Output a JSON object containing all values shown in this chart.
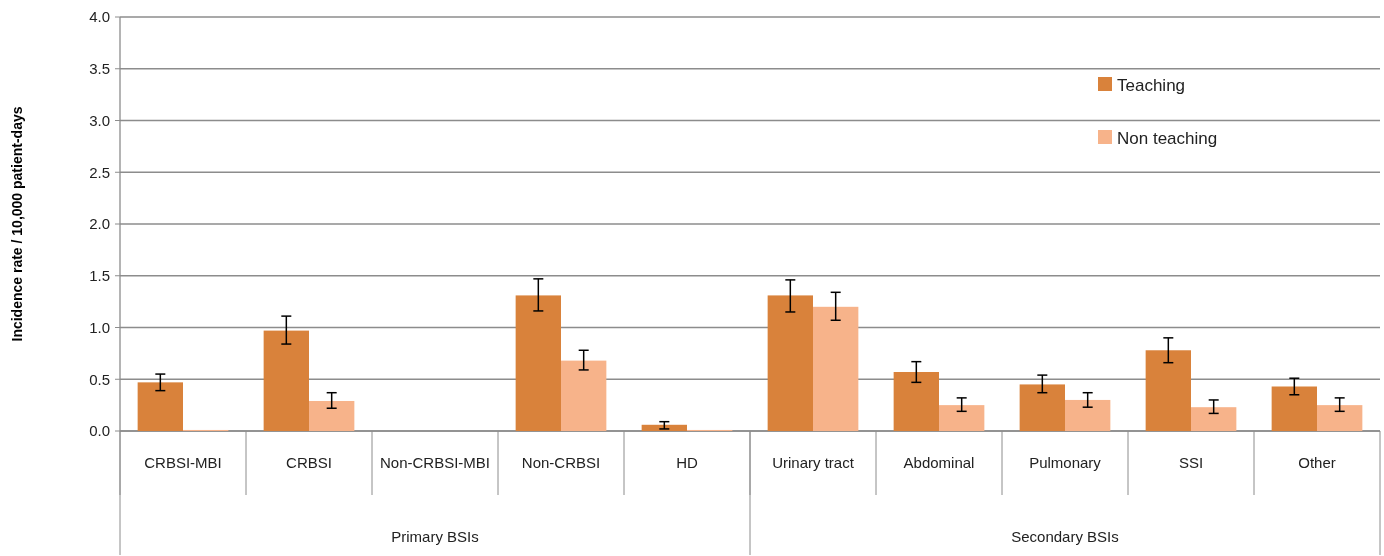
{
  "chart_data": {
    "type": "bar",
    "ylabel": "Incidence rate / 10,000 patient-days",
    "categories": [
      "CRBSI-MBI",
      "CRBSI",
      "Non-CRBSI-MBI",
      "Non-CRBSI",
      "HD",
      "Urinary tract",
      "Abdominal",
      "Pulmonary",
      "SSI",
      "Other"
    ],
    "series": [
      {
        "name": "Teaching",
        "color": "#d9823b",
        "values": [
          0.47,
          0.97,
          null,
          1.31,
          0.06,
          1.31,
          0.57,
          0.45,
          0.78,
          0.43
        ],
        "errors": [
          [
            0.39,
            0.55
          ],
          [
            0.84,
            1.11
          ],
          null,
          [
            1.16,
            1.47
          ],
          [
            0.02,
            0.09
          ],
          [
            1.15,
            1.46
          ],
          [
            0.47,
            0.67
          ],
          [
            0.37,
            0.54
          ],
          [
            0.66,
            0.9
          ],
          [
            0.35,
            0.51
          ]
        ]
      },
      {
        "name": "Non teaching",
        "color": "#f7b38a",
        "values": [
          0.01,
          0.29,
          null,
          0.68,
          0.01,
          1.2,
          0.25,
          0.3,
          0.23,
          0.25
        ],
        "errors": [
          null,
          [
            0.22,
            0.37
          ],
          null,
          [
            0.59,
            0.78
          ],
          null,
          [
            1.07,
            1.34
          ],
          [
            0.19,
            0.32
          ],
          [
            0.23,
            0.37
          ],
          [
            0.17,
            0.3
          ],
          [
            0.19,
            0.32
          ]
        ]
      }
    ],
    "ylim": [
      0,
      4
    ],
    "yticks": [
      {
        "value": 0,
        "label": "0.0"
      },
      {
        "value": 0.5,
        "label": "0.5"
      },
      {
        "value": 1,
        "label": "1.0"
      },
      {
        "value": 1.5,
        "label": "1.5"
      },
      {
        "value": 2,
        "label": "2.0"
      },
      {
        "value": 2.5,
        "label": "2.5"
      },
      {
        "value": 3,
        "label": "3.0"
      },
      {
        "value": 3.5,
        "label": "3.5"
      },
      {
        "value": 4,
        "label": "4.0"
      }
    ],
    "grid": "y",
    "legend": "top right",
    "annotations": [
      "Primary BSIs",
      "Secondary BSIs"
    ]
  }
}
